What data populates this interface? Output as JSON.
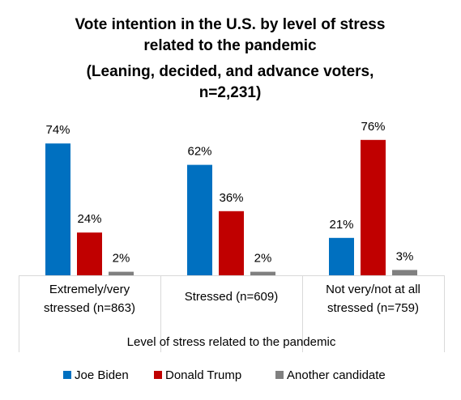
{
  "chart_data": {
    "type": "bar",
    "title_lines": [
      "Vote intention in the U.S. by level of stress",
      "related to the pandemic",
      "(Leaning, decided, and advance voters,",
      "n=2,231)"
    ],
    "xlabel": "Level of stress related to the pandemic",
    "ylabel": "",
    "ylim": [
      0,
      80
    ],
    "categories": [
      [
        "Extremely/very",
        "stressed (n=863)"
      ],
      [
        "Stressed (n=609)"
      ],
      [
        "Not very/not at all",
        "stressed (n=759)"
      ]
    ],
    "series": [
      {
        "name": "Joe Biden",
        "color": "#0070C0",
        "values": [
          74,
          62,
          21
        ],
        "labels": [
          "74%",
          "62%",
          "21%"
        ]
      },
      {
        "name": "Donald Trump",
        "color": "#C00000",
        "values": [
          24,
          36,
          76
        ],
        "labels": [
          "24%",
          "36%",
          "76%"
        ]
      },
      {
        "name": "Another candidate",
        "color": "#808080",
        "values": [
          2,
          2,
          3
        ],
        "labels": [
          "2%",
          "2%",
          "3%"
        ]
      }
    ],
    "legend_position": "bottom",
    "grid": false
  }
}
